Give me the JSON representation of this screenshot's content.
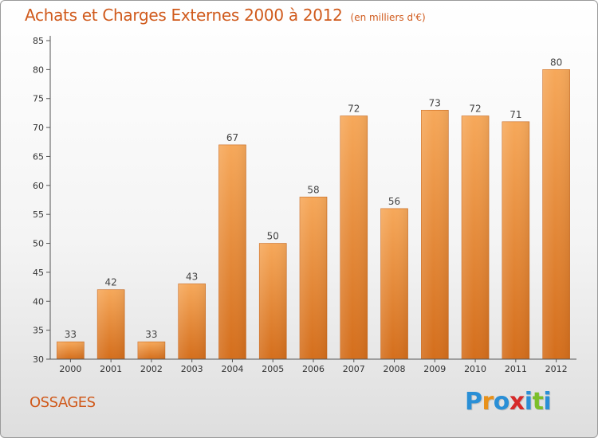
{
  "title": {
    "main": "Achats et Charges Externes 2000 à 2012",
    "unit": "(en milliers d'€)"
  },
  "commune": "OSSAGES",
  "logo": {
    "letters": [
      "P",
      "r",
      "o",
      "x",
      "i",
      "t",
      "i"
    ],
    "colors": [
      "#2a8fd6",
      "#e8911a",
      "#2a8fd6",
      "#d62a2a",
      "#2a8fd6",
      "#7cbf2a",
      "#2a8fd6"
    ]
  },
  "colors": {
    "bar_top": "#f6a85a",
    "bar_bottom": "#d46e1c",
    "text": "#d05a1c",
    "axis": "#555555"
  },
  "chart_data": {
    "type": "bar",
    "categories": [
      "2000",
      "2001",
      "2002",
      "2003",
      "2004",
      "2005",
      "2006",
      "2007",
      "2008",
      "2009",
      "2010",
      "2011",
      "2012"
    ],
    "values": [
      33,
      42,
      33,
      43,
      67,
      50,
      58,
      72,
      56,
      73,
      72,
      71,
      80
    ],
    "data_labels": [
      "33",
      "42",
      "33",
      "43",
      "67",
      "50",
      "58",
      "72",
      "56",
      "73",
      "72",
      "71",
      "80"
    ],
    "ylim": [
      30,
      85
    ],
    "yticks": [
      30,
      35,
      40,
      45,
      50,
      55,
      60,
      65,
      70,
      75,
      80,
      85
    ],
    "grid": false,
    "title": "Achats et Charges Externes 2000 à 2012",
    "xlabel": "",
    "ylabel": ""
  }
}
